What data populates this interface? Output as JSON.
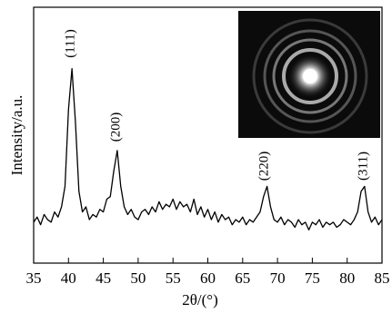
{
  "chart_data": {
    "type": "line",
    "xlabel": "2θ/(°)",
    "ylabel": "Intensity/a.u.",
    "annotations": [
      "(111)",
      "(200)",
      "(220)",
      "(311)"
    ],
    "x": [
      35,
      35.5,
      36,
      36.5,
      37,
      37.5,
      38,
      38.5,
      39,
      39.5,
      40,
      40.5,
      41,
      41.5,
      42,
      42.5,
      43,
      43.5,
      44,
      44.5,
      45,
      45.5,
      46,
      46.5,
      47,
      47.5,
      48,
      48.5,
      49,
      49.5,
      50,
      50.5,
      51,
      51.5,
      52,
      52.5,
      53,
      53.5,
      54,
      54.5,
      55,
      55.5,
      56,
      56.5,
      57,
      57.5,
      58,
      58.5,
      59,
      59.5,
      60,
      60.5,
      61,
      61.5,
      62,
      62.5,
      63,
      63.5,
      64,
      64.5,
      65,
      65.5,
      66,
      66.5,
      67,
      67.5,
      68,
      68.5,
      69,
      69.5,
      70,
      70.5,
      71,
      71.5,
      72,
      72.5,
      73,
      73.5,
      74,
      74.5,
      75,
      75.5,
      76,
      76.5,
      77,
      77.5,
      78,
      78.5,
      79,
      79.5,
      80,
      80.5,
      81,
      81.5,
      82,
      82.5,
      83,
      83.5,
      84,
      84.5,
      85
    ],
    "values": [
      16,
      18,
      15,
      19,
      17,
      16,
      20,
      18,
      22,
      30,
      60,
      76,
      55,
      28,
      20,
      22,
      17,
      19,
      18,
      21,
      20,
      25,
      26,
      36,
      44,
      30,
      22,
      19,
      21,
      18,
      17,
      20,
      21,
      19,
      22,
      20,
      24,
      21,
      23,
      22,
      25,
      21,
      24,
      22,
      23,
      20,
      25,
      19,
      22,
      18,
      21,
      17,
      20,
      16,
      19,
      17,
      18,
      15,
      17,
      16,
      18,
      15,
      17,
      16,
      18,
      20,
      26,
      30,
      22,
      17,
      16,
      18,
      15,
      17,
      16,
      14,
      17,
      15,
      16,
      13,
      16,
      15,
      17,
      14,
      16,
      15,
      16,
      14,
      15,
      17,
      16,
      15,
      17,
      20,
      28,
      30,
      20,
      16,
      18,
      15,
      17
    ],
    "color": "#000000",
    "xlim": [
      35,
      85
    ],
    "ylim": [
      0,
      100
    ],
    "xticks": [
      35,
      40,
      45,
      50,
      55,
      60,
      65,
      70,
      75,
      80,
      85
    ]
  }
}
